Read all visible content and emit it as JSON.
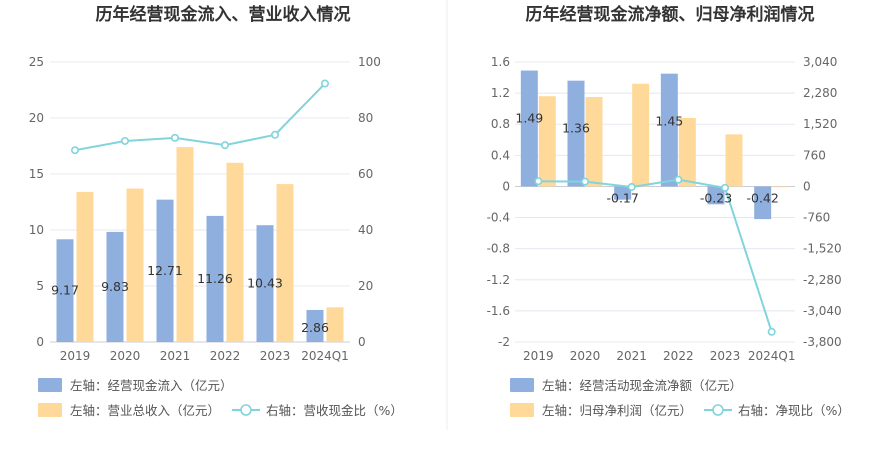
{
  "colors": {
    "blue": "#8fafdf",
    "orange": "#ffd99a",
    "cyan": "#80d4dc",
    "grid": "#e5e8ef",
    "divider": "#eeeeee"
  },
  "chart_data": [
    {
      "type": "bar",
      "title": "历年经营现金流入、营业收入情况",
      "categories": [
        "2019",
        "2020",
        "2021",
        "2022",
        "2023",
        "2024Q1"
      ],
      "left_axis": {
        "range": [
          0,
          25
        ],
        "ticks": [
          "0",
          "5",
          "10",
          "15",
          "20",
          "25"
        ]
      },
      "right_axis": {
        "range": [
          0,
          100
        ],
        "ticks": [
          "0",
          "20",
          "40",
          "60",
          "80",
          "100"
        ]
      },
      "series": [
        {
          "name": "左轴：经营现金流入（亿元）",
          "type": "bar",
          "axis": "left",
          "color": "#8fafdf",
          "values": [
            9.17,
            9.83,
            12.71,
            11.26,
            10.43,
            2.86
          ],
          "labels": [
            "9.17",
            "9.83",
            "12.71",
            "11.26",
            "10.43",
            "2.86"
          ]
        },
        {
          "name": "左轴：营业总收入（亿元）",
          "type": "bar",
          "axis": "left",
          "color": "#ffd99a",
          "values": [
            13.4,
            13.7,
            17.4,
            16.0,
            14.1,
            3.1
          ]
        },
        {
          "name": "右轴：营收现金比（%）",
          "type": "line",
          "axis": "right",
          "color": "#80d4dc",
          "values": [
            68.5,
            71.8,
            72.9,
            70.3,
            74.0,
            92.3
          ]
        }
      ],
      "legend": "bottom"
    },
    {
      "type": "bar",
      "title": "历年经营现金流净额、归母净利润情况",
      "categories": [
        "2019",
        "2020",
        "2021",
        "2022",
        "2023",
        "2024Q1"
      ],
      "left_axis": {
        "range": [
          -2,
          1.6
        ],
        "ticks": [
          "-2",
          "-1.6",
          "-1.2",
          "-0.8",
          "-0.4",
          "0",
          "0.4",
          "0.8",
          "1.2",
          "1.6"
        ]
      },
      "right_axis": {
        "range": [
          -3800,
          3040
        ],
        "ticks": [
          "-3,800",
          "-3,040",
          "-2,280",
          "-1,520",
          "-760",
          "0",
          "760",
          "1,520",
          "2,280",
          "3,040"
        ]
      },
      "series": [
        {
          "name": "左轴：经营活动现金流净额（亿元）",
          "type": "bar",
          "axis": "left",
          "color": "#8fafdf",
          "values": [
            1.49,
            1.36,
            -0.17,
            1.45,
            -0.23,
            -0.42
          ],
          "labels": [
            "1.49",
            "1.36",
            "-0.17",
            "1.45",
            "-0.23",
            "-0.42"
          ]
        },
        {
          "name": "左轴：归母净利润（亿元）",
          "type": "bar",
          "axis": "left",
          "color": "#ffd99a",
          "values": [
            1.16,
            1.15,
            1.32,
            0.88,
            0.67,
            -0.01
          ]
        },
        {
          "name": "右轴：净现比（%）",
          "type": "line",
          "axis": "right",
          "color": "#80d4dc",
          "values": [
            128,
            118,
            -13,
            165,
            -34,
            -3550
          ]
        }
      ],
      "legend": "bottom"
    }
  ]
}
